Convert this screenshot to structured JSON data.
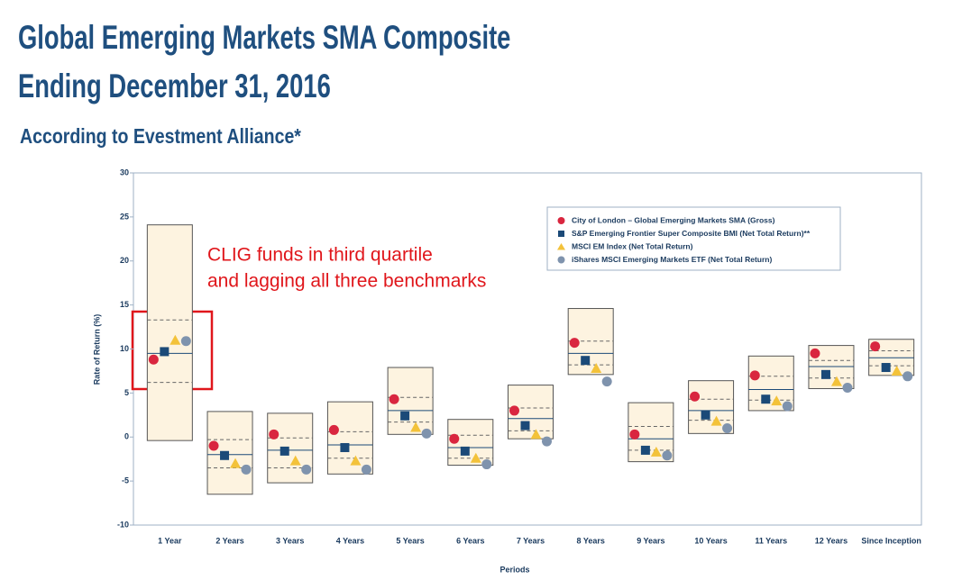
{
  "chart_data": {
    "type": "floating-box",
    "title_lines": [
      "Global Emerging Markets SMA Composite",
      "Ending December 31, 2016"
    ],
    "subtitle": "According to Evestment Alliance*",
    "annotation": [
      "CLIG funds in third quartile",
      "and lagging all three benchmarks"
    ],
    "y_label": "Rate of Return (%)",
    "x_label": "Periods",
    "categories": [
      "1 Year",
      "2 Years",
      "3 Years",
      "4 Years",
      "5 Years",
      "6 Years",
      "7 Years",
      "8 Years",
      "9 Years",
      "10 Years",
      "11 Years",
      "12 Years",
      "Since Inception"
    ],
    "boxes": [
      {
        "high": 24.1,
        "upper_quartile": 13.3,
        "median": 9.5,
        "lower_quartile": 6.2,
        "low": -0.4
      },
      {
        "high": 2.9,
        "upper_quartile": -0.3,
        "median": -2.0,
        "lower_quartile": -3.5,
        "low": -6.5
      },
      {
        "high": 2.7,
        "upper_quartile": -0.1,
        "median": -1.5,
        "lower_quartile": -3.5,
        "low": -5.2
      },
      {
        "high": 4.0,
        "upper_quartile": 0.6,
        "median": -0.9,
        "lower_quartile": -2.4,
        "low": -4.2
      },
      {
        "high": 7.9,
        "upper_quartile": 4.5,
        "median": 3.0,
        "lower_quartile": 1.7,
        "low": 0.3
      },
      {
        "high": 2.0,
        "upper_quartile": 0.2,
        "median": -1.2,
        "lower_quartile": -2.4,
        "low": -3.2
      },
      {
        "high": 5.9,
        "upper_quartile": 3.3,
        "median": 2.1,
        "lower_quartile": 0.7,
        "low": -0.2
      },
      {
        "high": 14.6,
        "upper_quartile": 10.9,
        "median": 9.5,
        "lower_quartile": 8.2,
        "low": 7.1
      },
      {
        "high": 3.9,
        "upper_quartile": 1.2,
        "median": -0.2,
        "lower_quartile": -1.5,
        "low": -2.8
      },
      {
        "high": 6.4,
        "upper_quartile": 4.3,
        "median": 3.0,
        "lower_quartile": 1.9,
        "low": 0.4
      },
      {
        "high": 9.2,
        "upper_quartile": 6.9,
        "median": 5.4,
        "lower_quartile": 4.2,
        "low": 3.0
      },
      {
        "high": 10.4,
        "upper_quartile": 8.7,
        "median": 8.0,
        "lower_quartile": 6.7,
        "low": 5.5
      },
      {
        "high": 11.1,
        "upper_quartile": 9.8,
        "median": 9.0,
        "lower_quartile": 8.1,
        "low": 7.0
      }
    ],
    "series": [
      {
        "name": "City of London – Global Emerging Markets SMA (Gross)",
        "marker": "circle",
        "color": "#d9263f",
        "values": [
          8.8,
          -1.0,
          0.3,
          0.8,
          4.3,
          -0.2,
          3.0,
          10.7,
          0.3,
          4.6,
          7.0,
          9.5,
          10.3
        ]
      },
      {
        "name": "S&P Emerging Frontier Super Composite BMI (Net Total Return)**",
        "marker": "square",
        "color": "#1b4a78",
        "values": [
          9.7,
          -2.1,
          -1.6,
          -1.2,
          2.4,
          -1.6,
          1.3,
          8.7,
          -1.5,
          2.5,
          4.3,
          7.1,
          7.9
        ]
      },
      {
        "name": "MSCI EM Index (Net Total Return)",
        "marker": "triangle",
        "color": "#f3c23a",
        "values": [
          11.0,
          -3.0,
          -2.7,
          -2.7,
          1.1,
          -2.4,
          0.3,
          7.8,
          -1.7,
          1.8,
          4.1,
          6.3,
          7.5
        ]
      },
      {
        "name": "iShares MSCI Emerging Markets ETF (Net Total Return)",
        "marker": "circle",
        "color": "#7f93ad",
        "values": [
          10.9,
          -3.7,
          -3.7,
          -3.7,
          0.4,
          -3.1,
          -0.5,
          6.3,
          -2.1,
          1.0,
          3.5,
          5.6,
          6.9
        ]
      }
    ],
    "ylim": [
      -10,
      30
    ],
    "yticks": [
      -10,
      -5,
      0,
      5,
      10,
      15,
      20,
      25,
      30
    ]
  }
}
